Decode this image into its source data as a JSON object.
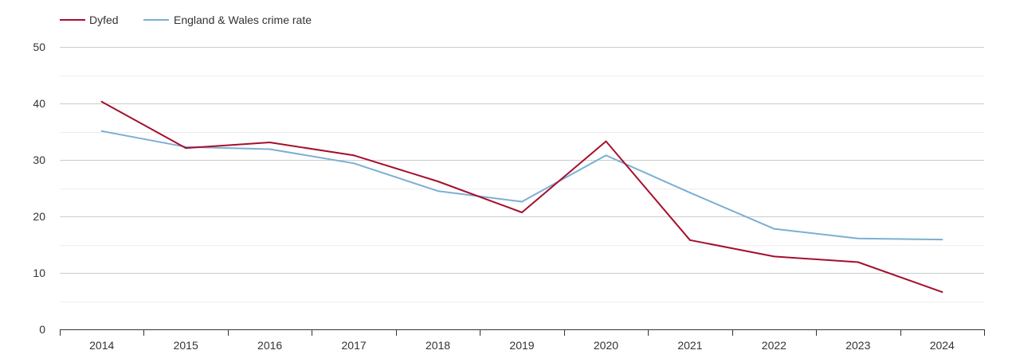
{
  "chart_data": {
    "type": "line",
    "title": "",
    "xlabel": "",
    "ylabel": "",
    "categories": [
      "2014",
      "2015",
      "2016",
      "2017",
      "2018",
      "2019",
      "2020",
      "2021",
      "2022",
      "2023",
      "2024"
    ],
    "ylim": [
      0,
      50
    ],
    "yticks": [
      0,
      10,
      20,
      30,
      40,
      50
    ],
    "grid": true,
    "legend_position": "top-left",
    "series": [
      {
        "name": "Dyfed",
        "color": "#a50f2d",
        "values": [
          40.3,
          32.1,
          33.1,
          30.8,
          26.2,
          20.7,
          33.3,
          15.8,
          12.9,
          11.9,
          6.6
        ]
      },
      {
        "name": "England & Wales crime rate",
        "color": "#7bafd4",
        "values": [
          35.1,
          32.3,
          31.9,
          29.4,
          24.5,
          22.6,
          30.8,
          24.2,
          17.8,
          16.1,
          15.9
        ]
      }
    ]
  }
}
